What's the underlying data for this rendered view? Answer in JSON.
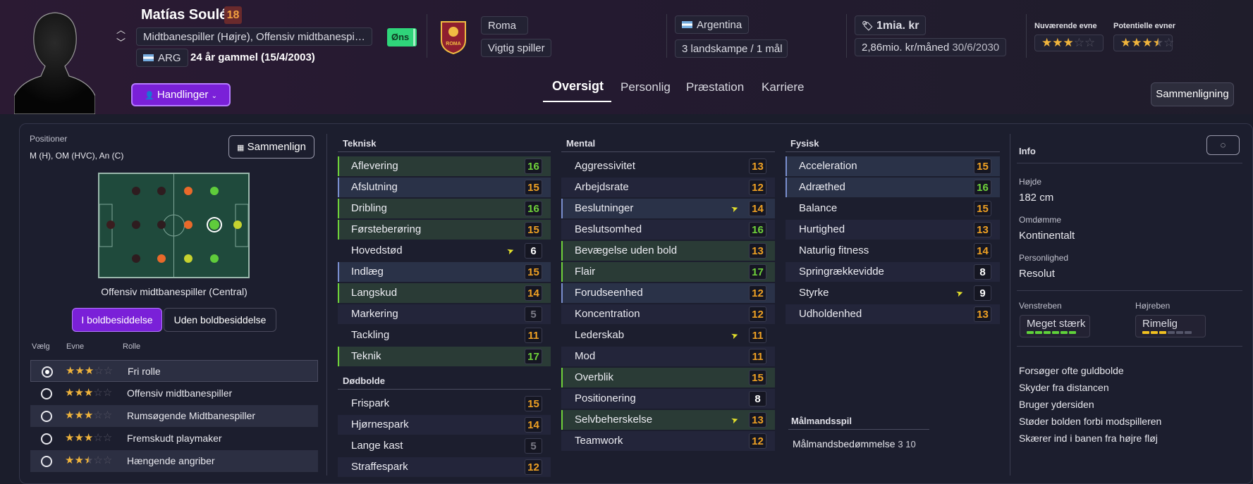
{
  "player": {
    "name": "Matías Soulé",
    "age_badge": "18",
    "position": "Midtbanespiller (Højre), Offensiv midtbanespiller ...",
    "nationality": "ARG",
    "age": "24 år gammel (15/4/2003)",
    "tag": "Øns"
  },
  "club": {
    "name": "Roma",
    "role": "Vigtig spiller",
    "crest_text": "ROMA"
  },
  "nation": {
    "country": "Argentina",
    "caps": "3 landskampe / 1 mål"
  },
  "value": {
    "amount": "1mia. kr",
    "wage": "2,86mio. kr/måned",
    "contract": "30/6/2030"
  },
  "ability": {
    "current_label": "Nuværende evne",
    "current_stars": 3,
    "potential_label": "Potentielle evner",
    "potential_stars": 3.5
  },
  "actions_label": "Handlinger",
  "tabs": [
    "Oversigt",
    "Personlig",
    "Præstation",
    "Karriere"
  ],
  "compare_label": "Sammenligning",
  "positions": {
    "title": "Positioner",
    "value": "M (H), OM (HVC), An (C)",
    "compare": "Sammenlign",
    "selected_position": "Offensiv midtbanespiller (Central)",
    "toggle_on": "I boldbesiddelse",
    "toggle_off": "Uden boldbesiddelse",
    "col_choose": "Vælg",
    "col_ability": "Evne",
    "col_role": "Rolle",
    "pitch_dots": [
      {
        "color": "#2e1c1f",
        "ring": false
      },
      {
        "color": "#2e1c1f",
        "ring": false
      },
      {
        "color": "#e9692a",
        "ring": false
      },
      {
        "color": "#5fcc3b",
        "ring": false
      },
      {
        "color": "#3a1d1f",
        "ring": false
      },
      {
        "color": "#2e1c1f",
        "ring": false
      },
      {
        "color": "#2e1c1f",
        "ring": false
      },
      {
        "color": "#e9692a",
        "ring": false
      },
      {
        "color": "#5fcc3b",
        "ring": true
      },
      {
        "color": "#c7d22f",
        "ring": false
      },
      {
        "color": "#2e1c1f",
        "ring": false
      },
      {
        "color": "#e9692a",
        "ring": false
      },
      {
        "color": "#c7d22f",
        "ring": false
      },
      {
        "color": "#5fcc3b",
        "ring": false
      }
    ],
    "roles": [
      {
        "name": "Fri rolle",
        "stars": 3,
        "selected": true
      },
      {
        "name": "Offensiv midtbanespiller",
        "stars": 3,
        "selected": false
      },
      {
        "name": "Rumsøgende Midtbanespiller",
        "stars": 3,
        "selected": false
      },
      {
        "name": "Fremskudt playmaker",
        "stars": 3,
        "selected": false
      },
      {
        "name": "Hængende angriber",
        "stars": 2.5,
        "selected": false
      }
    ]
  },
  "technical": {
    "title": "Teknisk",
    "attrs": [
      {
        "n": "Aflevering",
        "v": 16,
        "hl": "green"
      },
      {
        "n": "Afslutning",
        "v": 15,
        "hl": "blue"
      },
      {
        "n": "Dribling",
        "v": 16,
        "hl": "green"
      },
      {
        "n": "Førsteberøring",
        "v": 15,
        "hl": "green"
      },
      {
        "n": "Hovedstød",
        "v": 6,
        "hl": "",
        "up": true
      },
      {
        "n": "Indlæg",
        "v": 15,
        "hl": "blue"
      },
      {
        "n": "Langskud",
        "v": 14,
        "hl": "green"
      },
      {
        "n": "Markering",
        "v": 5,
        "hl": ""
      },
      {
        "n": "Tackling",
        "v": 11,
        "hl": ""
      },
      {
        "n": "Teknik",
        "v": 17,
        "hl": "green"
      }
    ]
  },
  "setpieces": {
    "title": "Dødbolde",
    "attrs": [
      {
        "n": "Frispark",
        "v": 15,
        "hl": ""
      },
      {
        "n": "Hjørnespark",
        "v": 14,
        "hl": ""
      },
      {
        "n": "Lange kast",
        "v": 5,
        "hl": ""
      },
      {
        "n": "Straffespark",
        "v": 12,
        "hl": ""
      }
    ]
  },
  "mental": {
    "title": "Mental",
    "attrs": [
      {
        "n": "Aggressivitet",
        "v": 13,
        "hl": ""
      },
      {
        "n": "Arbejdsrate",
        "v": 12,
        "hl": ""
      },
      {
        "n": "Beslutninger",
        "v": 14,
        "hl": "blue",
        "up": true
      },
      {
        "n": "Beslutsomhed",
        "v": 16,
        "hl": ""
      },
      {
        "n": "Bevægelse uden bold",
        "v": 13,
        "hl": "green"
      },
      {
        "n": "Flair",
        "v": 17,
        "hl": "green"
      },
      {
        "n": "Forudseenhed",
        "v": 12,
        "hl": "blue"
      },
      {
        "n": "Koncentration",
        "v": 12,
        "hl": ""
      },
      {
        "n": "Lederskab",
        "v": 11,
        "hl": "",
        "up": true
      },
      {
        "n": "Mod",
        "v": 11,
        "hl": ""
      },
      {
        "n": "Overblik",
        "v": 15,
        "hl": "green"
      },
      {
        "n": "Positionering",
        "v": 8,
        "hl": ""
      },
      {
        "n": "Selvbeherskelse",
        "v": 13,
        "hl": "green",
        "up": true
      },
      {
        "n": "Teamwork",
        "v": 12,
        "hl": ""
      }
    ]
  },
  "physical": {
    "title": "Fysisk",
    "attrs": [
      {
        "n": "Acceleration",
        "v": 15,
        "hl": "blue"
      },
      {
        "n": "Adræthed",
        "v": 16,
        "hl": "blue"
      },
      {
        "n": "Balance",
        "v": 15,
        "hl": ""
      },
      {
        "n": "Hurtighed",
        "v": 13,
        "hl": ""
      },
      {
        "n": "Naturlig fitness",
        "v": 14,
        "hl": ""
      },
      {
        "n": "Springrækkevidde",
        "v": 8,
        "hl": ""
      },
      {
        "n": "Styrke",
        "v": 9,
        "hl": "",
        "up": true
      },
      {
        "n": "Udholdenhed",
        "v": 13,
        "hl": ""
      }
    ]
  },
  "goalkeeping": {
    "title": "Målmandsspil",
    "label": "Målmandsbedømmelse",
    "value": "3 10"
  },
  "info": {
    "title": "Info",
    "height_label": "Højde",
    "height": "182 cm",
    "reputation_label": "Omdømme",
    "reputation": "Kontinentalt",
    "personality_label": "Personlighed",
    "personality": "Resolut",
    "left_foot_label": "Venstreben",
    "left_foot": "Meget stærk",
    "left_foot_level": 6,
    "right_foot_label": "Højreben",
    "right_foot": "Rimelig",
    "right_foot_level": 3,
    "traits": [
      "Forsøger ofte guldbolde",
      "Skyder fra distancen",
      "Bruger ydersiden",
      "Støder bolden forbi modspilleren",
      "Skærer ind i banen fra højre fløj"
    ]
  }
}
